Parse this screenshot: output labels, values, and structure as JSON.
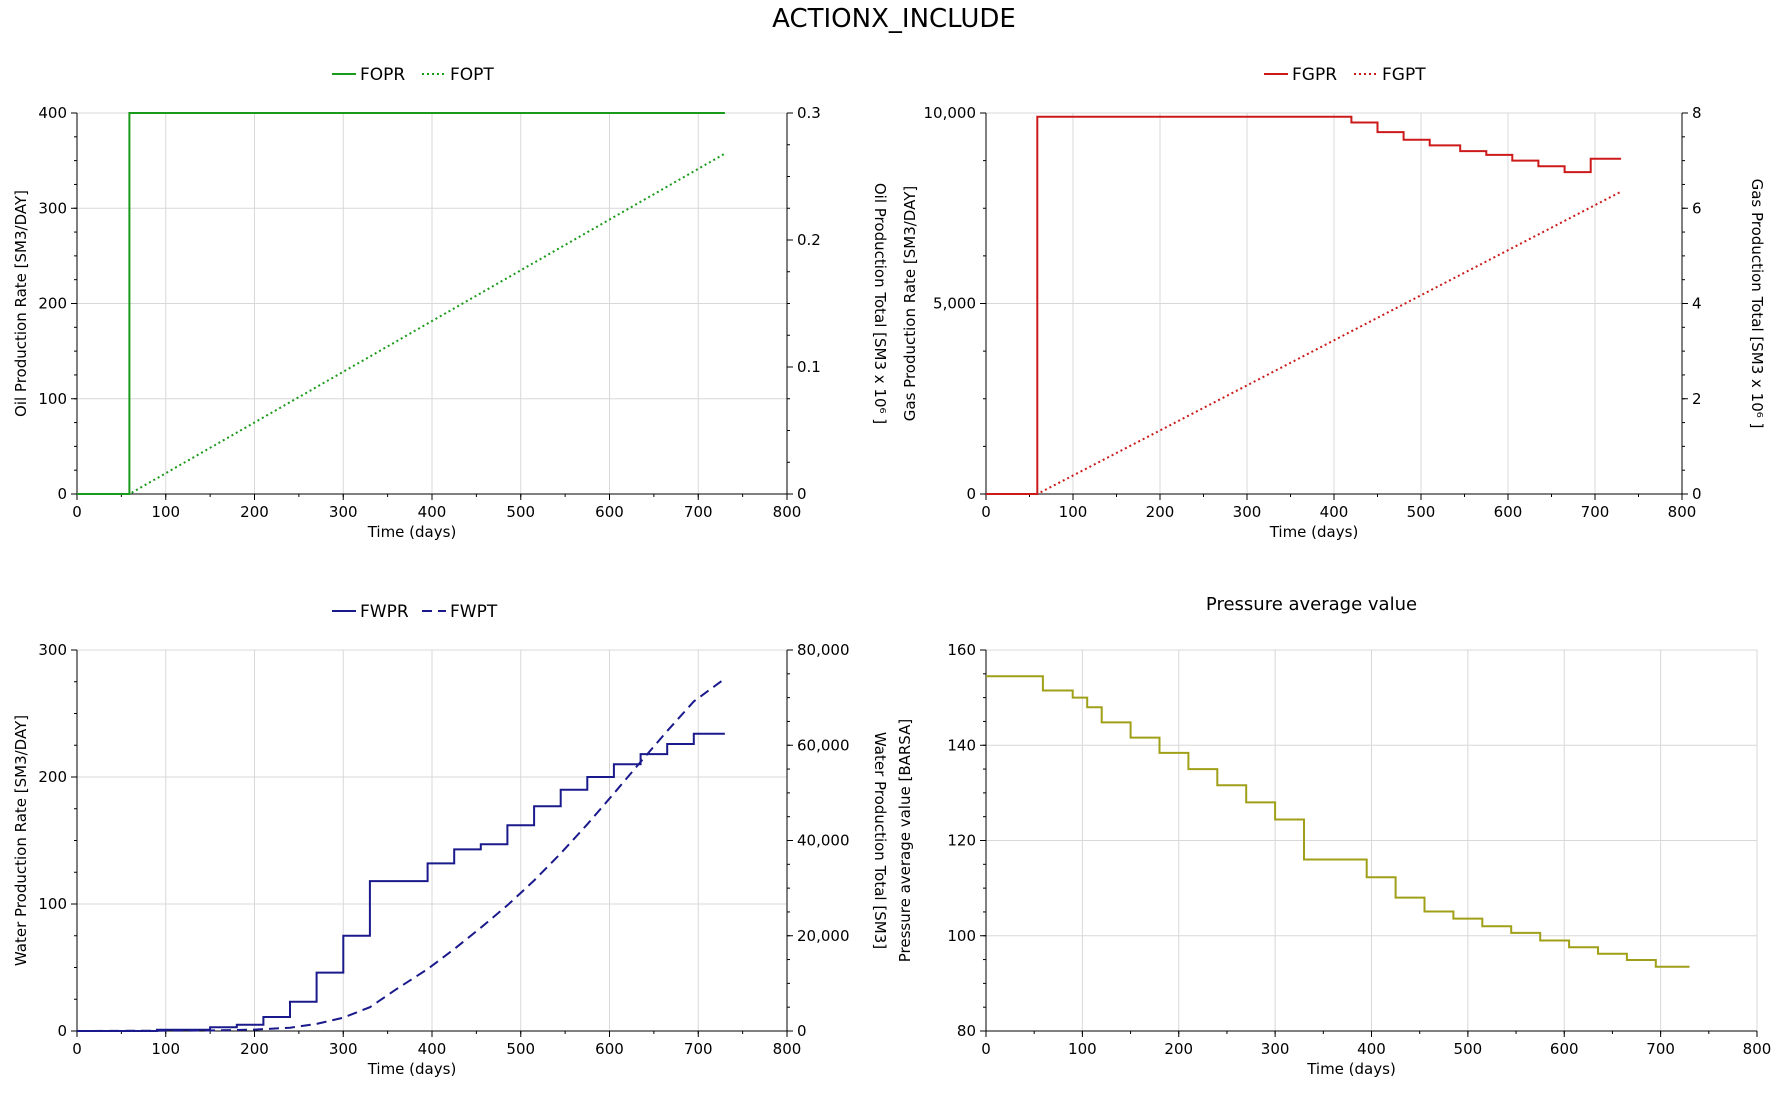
{
  "title": "ACTIONX_INCLUDE",
  "chart_data": [
    {
      "type": "line",
      "title": "",
      "xlabel": "Time (days)",
      "ylabel": "Oil Production Rate [SM3/DAY]",
      "y2label": "Oil Production Total [SM3 x 10⁶ ]",
      "xlim": [
        0,
        800
      ],
      "ylim": [
        0,
        400
      ],
      "y2lim": [
        0,
        0.3
      ],
      "xticks": [
        "0",
        "100",
        "200",
        "300",
        "400",
        "500",
        "600",
        "700",
        "800"
      ],
      "yticks": [
        "0",
        "100",
        "200",
        "300",
        "400"
      ],
      "y2ticks": [
        "0",
        "0.1",
        "0.2",
        "0.3"
      ],
      "grid": true,
      "legend": "top-center",
      "series": [
        {
          "name": "FOPR",
          "axis": "left",
          "style": "solid",
          "color": "#1a9a1a",
          "x": [
            0,
            59,
            59,
            730
          ],
          "y": [
            0,
            0,
            400,
            400
          ]
        },
        {
          "name": "FOPT",
          "axis": "right",
          "style": "dotted",
          "color": "#1a9a1a",
          "x": [
            0,
            59,
            730
          ],
          "y": [
            0,
            0,
            0.268
          ]
        }
      ]
    },
    {
      "type": "line",
      "title": "",
      "xlabel": "Time (days)",
      "ylabel": "Gas Production Rate [SM3/DAY]",
      "y2label": "Gas Production Total [SM3 x 10⁶ ]",
      "xlim": [
        0,
        800
      ],
      "ylim": [
        0,
        10000
      ],
      "y2lim": [
        0,
        8
      ],
      "xticks": [
        "0",
        "100",
        "200",
        "300",
        "400",
        "500",
        "600",
        "700",
        "800"
      ],
      "yticks": [
        "0",
        "5,000",
        "10,000"
      ],
      "y2ticks": [
        "0",
        "2",
        "4",
        "6",
        "8"
      ],
      "grid": true,
      "legend": "top-center",
      "series": [
        {
          "name": "FGPR",
          "axis": "left",
          "style": "solid",
          "color": "#cc1a1a",
          "x": [
            0,
            59,
            59,
            420,
            420,
            450,
            450,
            480,
            480,
            510,
            510,
            545,
            545,
            575,
            575,
            605,
            605,
            635,
            635,
            665,
            665,
            695,
            695,
            730
          ],
          "y": [
            0,
            0,
            9900,
            9900,
            9750,
            9750,
            9500,
            9500,
            9300,
            9300,
            9150,
            9150,
            9000,
            9000,
            8900,
            8900,
            8750,
            8750,
            8600,
            8600,
            8450,
            8450,
            8800,
            8800
          ]
        },
        {
          "name": "FGPT",
          "axis": "right",
          "style": "dotted",
          "color": "#cc1a1a",
          "x": [
            0,
            59,
            730
          ],
          "y": [
            0,
            0,
            6.35
          ]
        }
      ]
    },
    {
      "type": "line",
      "title": "",
      "xlabel": "Time (days)",
      "ylabel": "Water Production Rate [SM3/DAY]",
      "y2label": "Water Production Total [SM3]",
      "xlim": [
        0,
        800
      ],
      "ylim": [
        0,
        300
      ],
      "y2lim": [
        0,
        80000
      ],
      "xticks": [
        "0",
        "100",
        "200",
        "300",
        "400",
        "500",
        "600",
        "700",
        "800"
      ],
      "yticks": [
        "0",
        "100",
        "200",
        "300"
      ],
      "y2ticks": [
        "0",
        "20,000",
        "40,000",
        "60,000",
        "80,000"
      ],
      "grid": true,
      "legend": "top-center",
      "series": [
        {
          "name": "FWPR",
          "axis": "left",
          "style": "solid",
          "color": "#1a1a8c",
          "x": [
            0,
            90,
            90,
            150,
            150,
            180,
            180,
            210,
            210,
            240,
            240,
            270,
            270,
            300,
            300,
            330,
            330,
            395,
            395,
            425,
            425,
            455,
            455,
            485,
            485,
            515,
            515,
            545,
            545,
            575,
            575,
            605,
            605,
            635,
            635,
            665,
            665,
            695,
            695,
            730
          ],
          "y": [
            0,
            0,
            1,
            1,
            3,
            3,
            5,
            5,
            11,
            11,
            23,
            23,
            46,
            46,
            75,
            75,
            118,
            118,
            132,
            132,
            143,
            143,
            147,
            147,
            162,
            162,
            177,
            177,
            190,
            190,
            200,
            200,
            210,
            210,
            218,
            218,
            226,
            226,
            234,
            234
          ]
        },
        {
          "name": "FWPT",
          "axis": "right",
          "style": "dashed",
          "color": "#1a1a8c",
          "x": [
            0,
            150,
            200,
            240,
            270,
            300,
            330,
            360,
            395,
            425,
            455,
            485,
            515,
            545,
            575,
            605,
            635,
            665,
            695,
            730
          ],
          "y": [
            0,
            100,
            300,
            700,
            1500,
            2800,
            5000,
            8800,
            13000,
            17200,
            21700,
            26400,
            31600,
            37300,
            43400,
            49900,
            56500,
            63000,
            69200,
            74000
          ]
        }
      ]
    },
    {
      "type": "line",
      "title": "Pressure average value",
      "xlabel": "Time (days)",
      "ylabel": "Pressure average value [BARSA]",
      "xlim": [
        0,
        800
      ],
      "ylim": [
        80,
        160
      ],
      "xticks": [
        "0",
        "100",
        "200",
        "300",
        "400",
        "500",
        "600",
        "700",
        "800"
      ],
      "yticks": [
        "80",
        "100",
        "120",
        "140",
        "160"
      ],
      "grid": true,
      "legend": "none",
      "series": [
        {
          "name": "",
          "axis": "left",
          "style": "solid",
          "color": "#a0a018",
          "x": [
            0,
            59,
            59,
            90,
            90,
            105,
            105,
            120,
            120,
            150,
            150,
            180,
            180,
            210,
            210,
            240,
            240,
            270,
            270,
            300,
            300,
            330,
            330,
            395,
            395,
            425,
            425,
            455,
            455,
            485,
            485,
            515,
            515,
            545,
            545,
            575,
            575,
            605,
            605,
            635,
            635,
            665,
            665,
            695,
            695,
            730
          ],
          "y": [
            154.5,
            154.5,
            151.5,
            151.5,
            150,
            150,
            148,
            148,
            144.8,
            144.8,
            141.6,
            141.6,
            138.4,
            138.4,
            135,
            135,
            131.6,
            131.6,
            128,
            128,
            124.4,
            124.4,
            116,
            116,
            112.3,
            112.3,
            108,
            108,
            105.1,
            105.1,
            103.6,
            103.6,
            102,
            102,
            100.6,
            100.6,
            99,
            99,
            97.6,
            97.6,
            96.2,
            96.2,
            94.9,
            94.9,
            93.5,
            93.5
          ]
        }
      ]
    }
  ]
}
